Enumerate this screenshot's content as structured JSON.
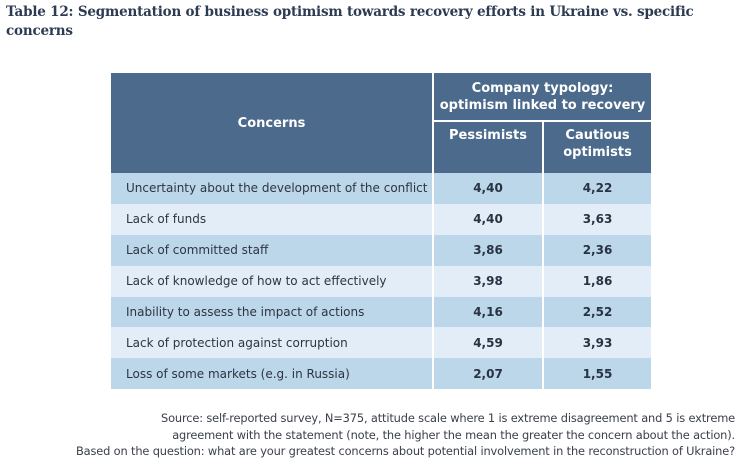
{
  "title": "Table 12: Segmentation of business optimism towards recovery efforts in Ukraine vs. specific concerns",
  "colors": {
    "header_bg": "#4c6a8b",
    "row_dark": "#bcd6ea",
    "row_light": "#e2edf7",
    "title_text": "#2c3a52"
  },
  "table": {
    "header": {
      "concerns": "Concerns",
      "group_line1": "Company typology:",
      "group_line2": "optimism linked to recovery",
      "col_pessimists": "Pessimists",
      "col_cautious_line1": "Cautious",
      "col_cautious_line2": "optimists"
    },
    "rows": [
      {
        "concern": "Uncertainty about the development of the conflict",
        "pessimists": "4,40",
        "cautious_optimists": "4,22"
      },
      {
        "concern": "Lack of funds",
        "pessimists": "4,40",
        "cautious_optimists": "3,63"
      },
      {
        "concern": "Lack of committed staff",
        "pessimists": "3,86",
        "cautious_optimists": "2,36"
      },
      {
        "concern": "Lack of knowledge of how to act effectively",
        "pessimists": "3,98",
        "cautious_optimists": "1,86"
      },
      {
        "concern": "Inability to assess the impact of actions",
        "pessimists": "4,16",
        "cautious_optimists": "2,52"
      },
      {
        "concern": "Lack of protection against corruption",
        "pessimists": "4,59",
        "cautious_optimists": "3,93"
      },
      {
        "concern": "Loss of some markets (e.g. in Russia)",
        "pessimists": "2,07",
        "cautious_optimists": "1,55"
      }
    ]
  },
  "source": {
    "line1": "Source: self-reported survey, N=375, attitude scale where 1 is extreme disagreement and 5 is extreme",
    "line2": "agreement with the statement (note, the higher the mean the greater the concern about the action).",
    "line3": "Based on the question: what are your greatest concerns about potential involvement in the reconstruction of Ukraine?"
  }
}
